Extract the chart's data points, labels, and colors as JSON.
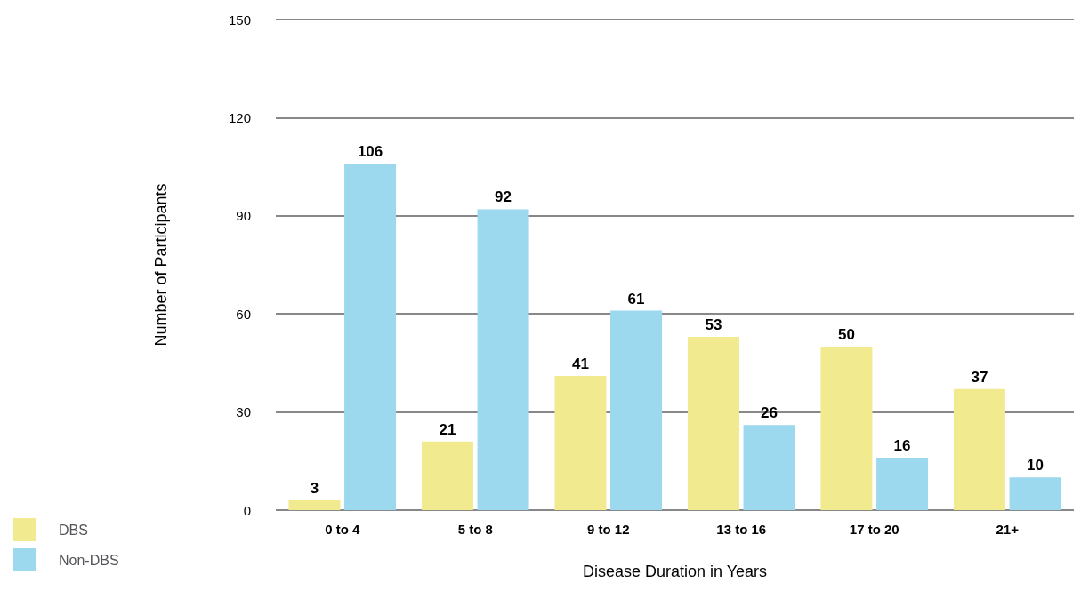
{
  "chart_data": {
    "type": "bar",
    "xlabel": "Disease Duration in Years",
    "ylabel": "Number of Participants",
    "categories": [
      "0 to 4",
      "5 to 8",
      "9 to 12",
      "13 to 16",
      "17 to 20",
      "21+"
    ],
    "series": [
      {
        "name": "DBS",
        "color": "#f2ea8e",
        "values": [
          3,
          21,
          41,
          53,
          50,
          37
        ]
      },
      {
        "name": "Non-DBS",
        "color": "#9cd8ee",
        "values": [
          106,
          92,
          61,
          26,
          16,
          10
        ]
      }
    ],
    "ylim": [
      0,
      150
    ],
    "yticks": [
      0,
      30,
      60,
      90,
      120,
      150
    ],
    "grid": "y",
    "legend": "bottom left",
    "data_labels": true
  }
}
